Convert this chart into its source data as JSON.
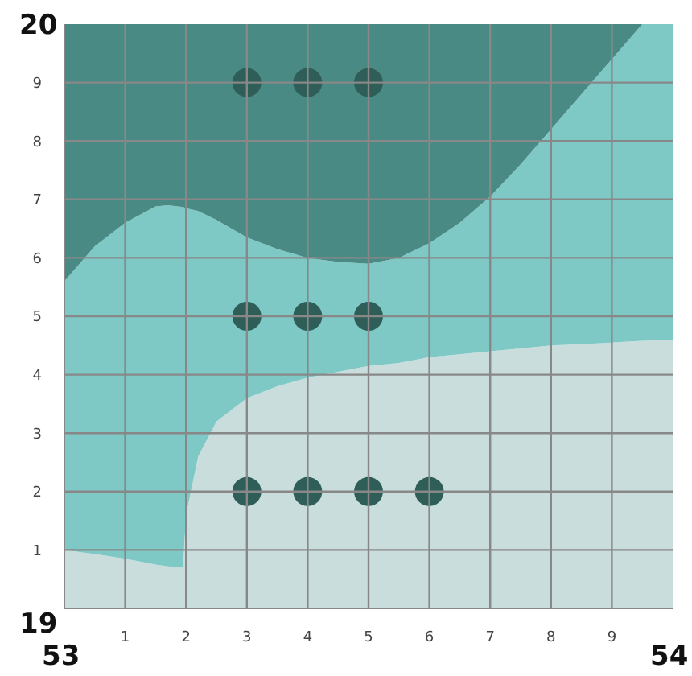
{
  "chart_data": {
    "type": "area",
    "stacked": true,
    "x": [
      0,
      0.5,
      1,
      1.5,
      1.7,
      1.95,
      2,
      2.2,
      2.5,
      3,
      3.5,
      4,
      4.5,
      5,
      5.5,
      6,
      6.5,
      7,
      7.5,
      8,
      8.5,
      9,
      9.5,
      10
    ],
    "series": [
      {
        "color": "#c9dddc",
        "values": [
          1.0,
          0.93,
          0.85,
          0.75,
          0.72,
          0.7,
          1.6,
          2.6,
          3.2,
          3.6,
          3.8,
          3.95,
          4.05,
          4.15,
          4.2,
          4.3,
          4.35,
          4.4,
          4.45,
          4.5,
          4.52,
          4.55,
          4.58,
          4.6
        ]
      },
      {
        "color": "#7ec8c6",
        "values": [
          4.6,
          5.27,
          5.75,
          6.13,
          6.18,
          6.17,
          5.25,
          4.2,
          3.45,
          2.75,
          2.35,
          2.05,
          1.88,
          1.75,
          1.8,
          1.95,
          2.25,
          2.65,
          3.15,
          3.7,
          4.28,
          4.85,
          5.42,
          5.4
        ]
      },
      {
        "color": "#4a8a84",
        "values": [
          4.4,
          3.8,
          3.4,
          3.12,
          3.1,
          3.13,
          3.15,
          3.2,
          3.35,
          3.65,
          3.85,
          4.0,
          4.07,
          4.1,
          4.0,
          3.75,
          3.4,
          2.95,
          2.4,
          1.8,
          1.2,
          0.6,
          0,
          0
        ]
      },
      {
        "type": "scatter",
        "marker": "circle",
        "color": "#2f5e59",
        "x": [
          3,
          4,
          5,
          3,
          4,
          5,
          3,
          4,
          5,
          6
        ],
        "values": [
          9,
          9,
          9,
          5,
          5,
          5,
          2,
          2,
          2,
          2
        ]
      }
    ],
    "xlim": [
      0,
      10
    ],
    "xticks": [
      1,
      2,
      3,
      4,
      5,
      6,
      7,
      8,
      9
    ],
    "ylim": [
      0,
      10
    ],
    "yticks": [
      1,
      2,
      3,
      4,
      5,
      6,
      7,
      8,
      9
    ],
    "grid": true,
    "annotations": [
      "20",
      "19",
      "53",
      "54"
    ]
  }
}
